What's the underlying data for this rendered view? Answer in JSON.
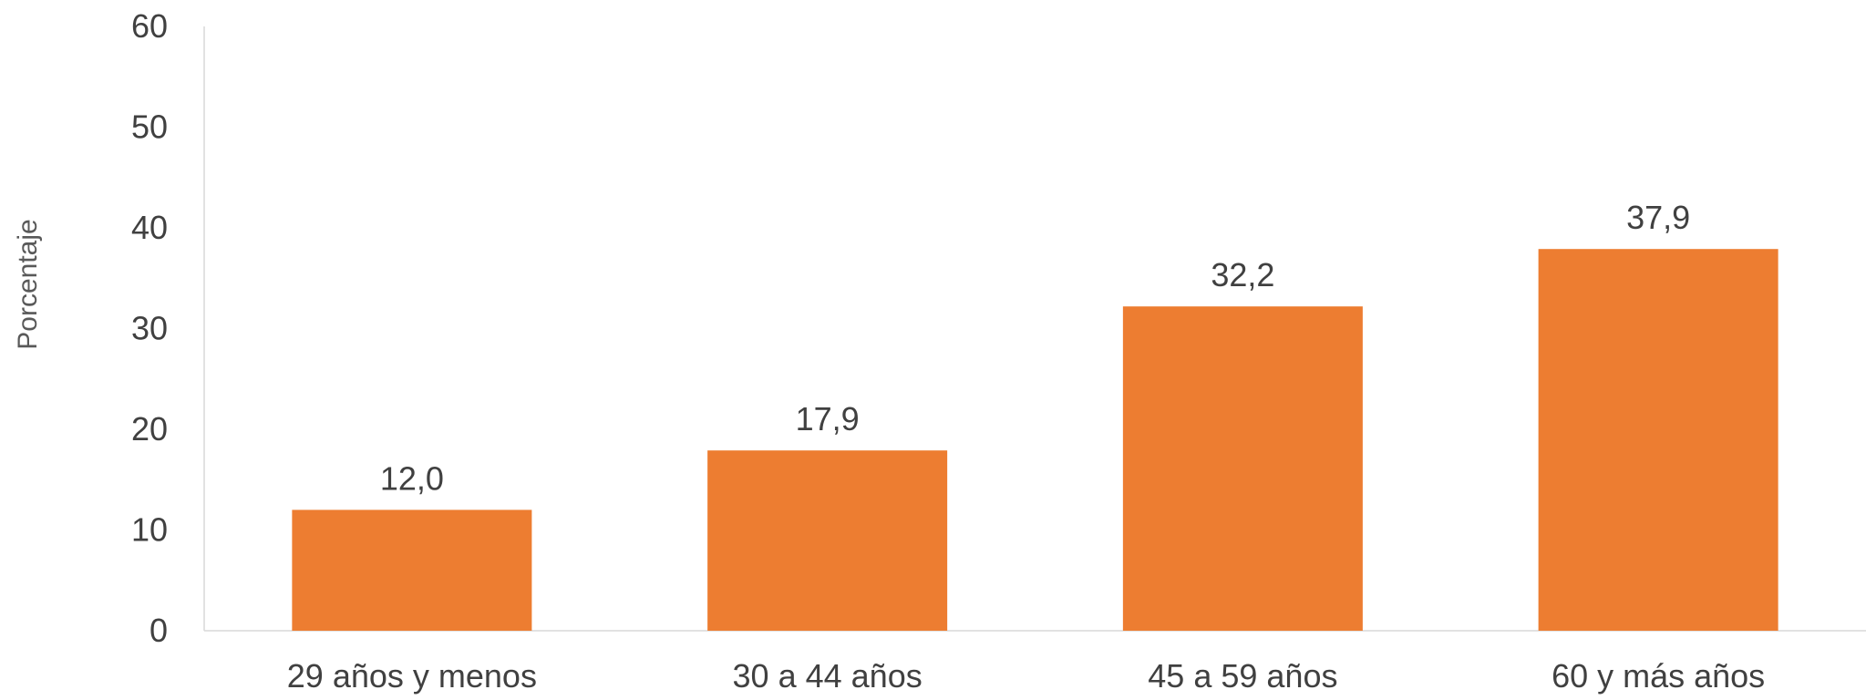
{
  "chart_data": {
    "type": "bar",
    "categories": [
      "29 años y menos",
      "30 a 44 años",
      "45 a 59 años",
      "60 y más años"
    ],
    "values": [
      12.0,
      17.9,
      32.2,
      37.9
    ],
    "data_labels": [
      "12,0",
      "17,9",
      "32,2",
      "37,9"
    ],
    "title": "",
    "xlabel": "",
    "ylabel": "Porcentaje",
    "ylim": [
      0,
      60
    ],
    "yticks": [
      0,
      10,
      20,
      30,
      40,
      50,
      60
    ],
    "grid": false,
    "legend": "none",
    "bar_color": "#ED7D31",
    "axis_color": "#D9D9D9",
    "text_color": "#404040"
  }
}
